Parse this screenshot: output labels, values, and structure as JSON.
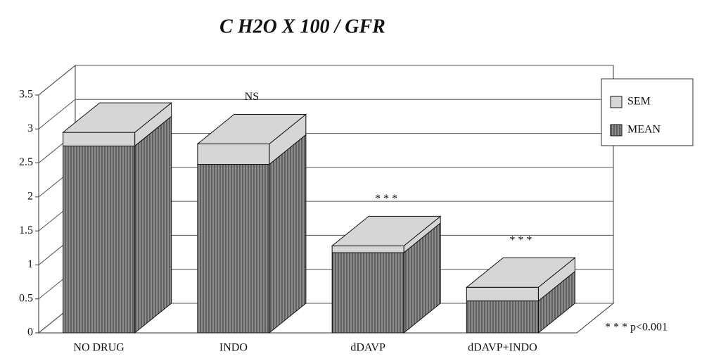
{
  "chart_data": {
    "type": "bar3d",
    "title": "C H2O X 100 / GFR",
    "categories": [
      "NO DRUG",
      "INDO",
      "dDAVP",
      "dDAVP+INDO"
    ],
    "series": [
      {
        "name": "MEAN",
        "color": "#8c8c8c",
        "values": [
          2.75,
          2.48,
          1.18,
          0.47
        ]
      },
      {
        "name": "SEM",
        "color": "#d6d6d6",
        "values": [
          0.2,
          0.3,
          0.1,
          0.2
        ]
      }
    ],
    "stacked": true,
    "ylim": [
      0,
      3.5
    ],
    "yticks": [
      0,
      0.5,
      1,
      1.5,
      2,
      2.5,
      3,
      3.5
    ],
    "grid": true,
    "legend": "top-right",
    "annotations": [
      {
        "text": "NS",
        "category": "INDO"
      },
      {
        "text": "* * *",
        "category": "dDAVP"
      },
      {
        "text": "* * *",
        "category": "dDAVP+INDO"
      }
    ],
    "note": "* * * p<0.001"
  }
}
